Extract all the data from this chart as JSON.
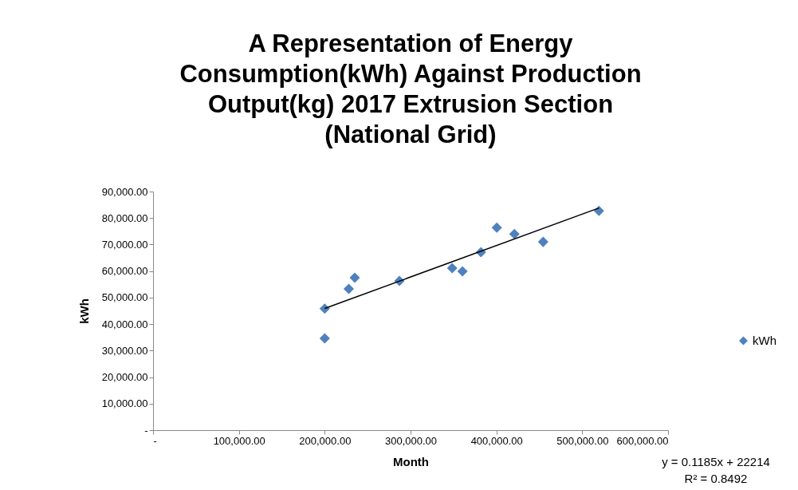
{
  "chart_data": {
    "type": "scatter",
    "title": "A Representation of Energy Consumption(kWh) Against Production Output(kg) 2017 Extrusion Section (National Grid)",
    "xlabel": "Month",
    "ylabel": "kWh",
    "series": [
      {
        "name": "kWh",
        "color": "#4f81bd",
        "x": [
          200000,
          200000,
          228000,
          235000,
          287000,
          348500,
          360500,
          382000,
          400500,
          421000,
          454500,
          519500
        ],
        "values": [
          45800,
          34600,
          53300,
          57500,
          56300,
          61100,
          59900,
          67100,
          76400,
          74000,
          71000,
          82700
        ]
      },
      {
        "type": "line",
        "color": "#000000",
        "marker": "none",
        "x": [
          200000,
          519500
        ],
        "values": [
          45900,
          83800
        ]
      }
    ],
    "xlim": [
      0,
      600000
    ],
    "ylim": [
      0,
      90000
    ],
    "xticks": [
      {
        "value": 0,
        "label": "-"
      },
      {
        "value": 100000,
        "label": "100,000.00"
      },
      {
        "value": 200000,
        "label": "200,000.00"
      },
      {
        "value": 300000,
        "label": "300,000.00"
      },
      {
        "value": 400000,
        "label": "400,000.00"
      },
      {
        "value": 500000,
        "label": "500,000.00"
      },
      {
        "value": 600000,
        "label": "600,000.00"
      }
    ],
    "yticks": [
      {
        "value": 0,
        "label": "-"
      },
      {
        "value": 10000,
        "label": "10,000.00"
      },
      {
        "value": 20000,
        "label": "20,000.00"
      },
      {
        "value": 30000,
        "label": "30,000.00"
      },
      {
        "value": 40000,
        "label": "40,000.00"
      },
      {
        "value": 50000,
        "label": "50,000.00"
      },
      {
        "value": 60000,
        "label": "60,000.00"
      },
      {
        "value": 70000,
        "label": "70,000.00"
      },
      {
        "value": 80000,
        "label": "80,000.00"
      },
      {
        "value": 90000,
        "label": "90,000.00"
      }
    ],
    "legend": "right",
    "marker": "diamond",
    "annotations": [
      "y = 0.1185x + 22214",
      "R² = 0.8492"
    ]
  }
}
